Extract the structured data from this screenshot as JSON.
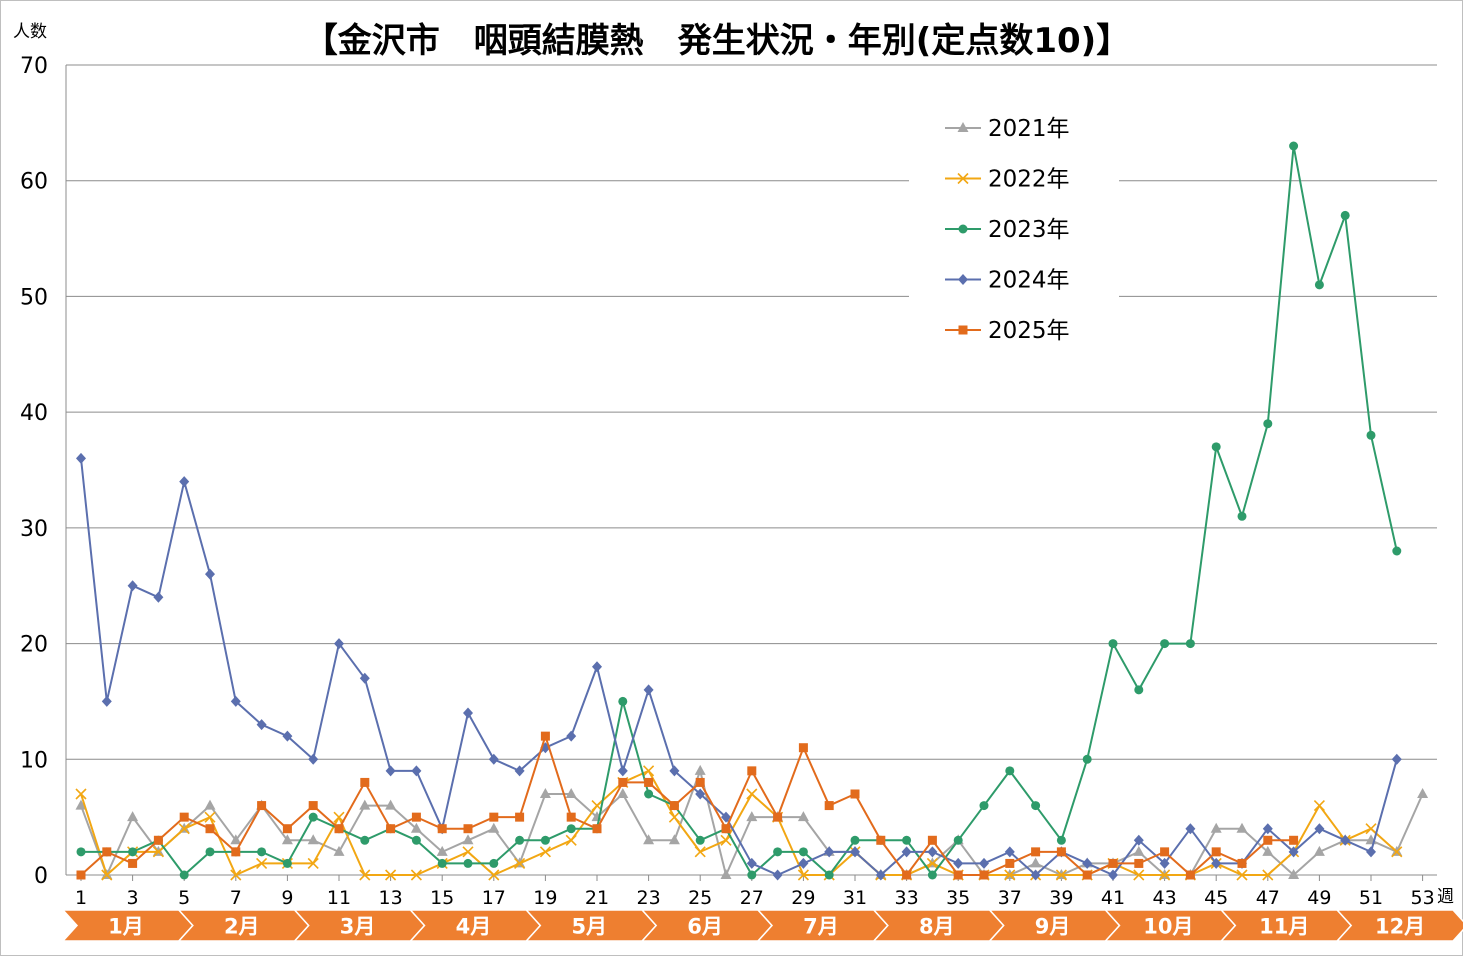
{
  "chart_data": {
    "type": "line",
    "title": "【金沢市　咽頭結膜熱　発生状況・年別(定点数10)】",
    "ylabel": "人数",
    "xlabel": "週",
    "ylim": [
      0,
      70
    ],
    "xlim": [
      1,
      53
    ],
    "yticks": [
      0,
      10,
      20,
      30,
      40,
      50,
      60,
      70
    ],
    "xticks": [
      1,
      3,
      5,
      7,
      9,
      11,
      13,
      15,
      17,
      19,
      21,
      23,
      25,
      27,
      29,
      31,
      33,
      35,
      37,
      39,
      41,
      43,
      45,
      47,
      49,
      51,
      53
    ],
    "grid": true,
    "legend_position": "top-right",
    "months": [
      "1月",
      "2月",
      "3月",
      "4月",
      "5月",
      "6月",
      "7月",
      "8月",
      "9月",
      "10月",
      "11月",
      "12月"
    ],
    "series": [
      {
        "name": "2021年",
        "color": "#a5a5a5",
        "marker": "triangle",
        "values": [
          6,
          0,
          5,
          2,
          4,
          6,
          3,
          6,
          3,
          3,
          2,
          6,
          6,
          4,
          2,
          3,
          4,
          1,
          7,
          7,
          5,
          7,
          3,
          3,
          9,
          0,
          5,
          5,
          5,
          2,
          2,
          0,
          0,
          1,
          3,
          0,
          0,
          1,
          0,
          1,
          1,
          2,
          0,
          0,
          4,
          4,
          2,
          0,
          2,
          3,
          3,
          2,
          7
        ]
      },
      {
        "name": "2022年",
        "color": "#f2a713",
        "marker": "x",
        "values": [
          7,
          0,
          2,
          2,
          4,
          5,
          0,
          1,
          1,
          1,
          5,
          0,
          0,
          0,
          1,
          2,
          0,
          1,
          2,
          3,
          6,
          8,
          9,
          5,
          2,
          3,
          7,
          5,
          0,
          0,
          2,
          0,
          0,
          1,
          0,
          0,
          0,
          0,
          0,
          0,
          1,
          0,
          0,
          0,
          1,
          0,
          0,
          2,
          6,
          3,
          4,
          2
        ]
      },
      {
        "name": "2023年",
        "color": "#2e9b6a",
        "marker": "circle",
        "values": [
          2,
          2,
          2,
          3,
          0,
          2,
          2,
          2,
          1,
          5,
          4,
          3,
          4,
          3,
          1,
          1,
          1,
          3,
          3,
          4,
          4,
          15,
          7,
          6,
          3,
          4,
          0,
          2,
          2,
          0,
          3,
          3,
          3,
          0,
          3,
          6,
          9,
          6,
          3,
          10,
          20,
          16,
          20,
          20,
          37,
          31,
          39,
          63,
          51,
          57,
          38,
          28
        ]
      },
      {
        "name": "2024年",
        "color": "#5b6fae",
        "marker": "diamond",
        "values": [
          36,
          15,
          25,
          24,
          34,
          26,
          15,
          13,
          12,
          10,
          20,
          17,
          9,
          9,
          4,
          14,
          10,
          9,
          11,
          12,
          18,
          9,
          16,
          9,
          7,
          5,
          1,
          0,
          1,
          2,
          2,
          0,
          2,
          2,
          1,
          1,
          2,
          0,
          2,
          1,
          0,
          3,
          1,
          4,
          1,
          1,
          4,
          2,
          4,
          3,
          2,
          10
        ]
      },
      {
        "name": "2025年",
        "color": "#e26b1c",
        "marker": "square",
        "values": [
          0,
          2,
          1,
          3,
          5,
          4,
          2,
          6,
          4,
          6,
          4,
          8,
          4,
          5,
          4,
          4,
          5,
          5,
          12,
          5,
          4,
          8,
          8,
          6,
          8,
          4,
          9,
          5,
          11,
          6,
          7,
          3,
          0,
          3,
          0,
          0,
          1,
          2,
          2,
          0,
          1,
          1,
          2,
          0,
          2,
          1,
          3,
          3
        ]
      }
    ]
  }
}
